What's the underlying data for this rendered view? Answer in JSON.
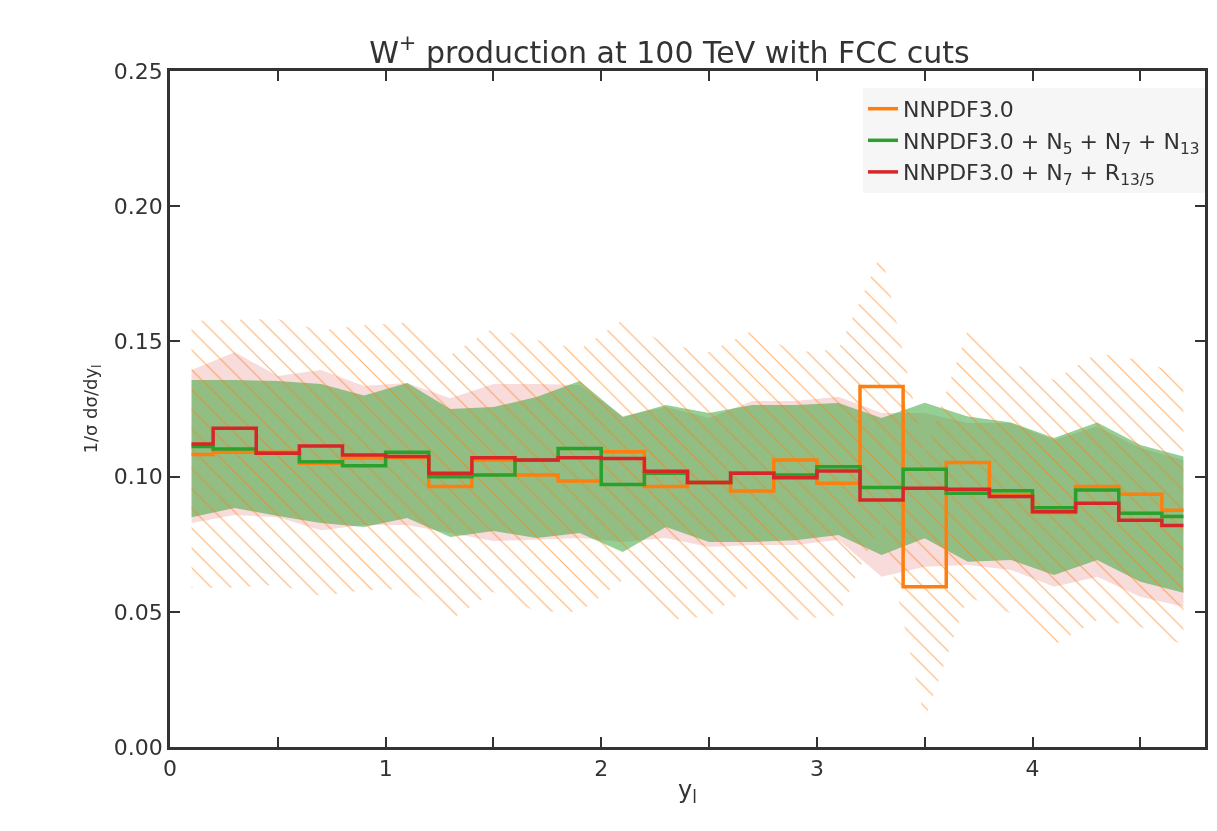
{
  "chart_data": {
    "type": "step",
    "title": "W$^{+}$ production at 100 TeV with FCC cuts",
    "xlabel": "y$_{l}$",
    "ylabel": "1/σ dσ/dy$_{l}$",
    "x": [
      0.1,
      0.3,
      0.5,
      0.7,
      0.9,
      1.1,
      1.3,
      1.5,
      1.7,
      1.9,
      2.1,
      2.3,
      2.5,
      2.7,
      2.9,
      3.1,
      3.3,
      3.5,
      3.7,
      3.9,
      4.1,
      4.3,
      4.5,
      4.7
    ],
    "series": [
      {
        "name": "NNPDF3.0",
        "color": "#ff7f0e",
        "values": [
          0.1082,
          0.109,
          0.109,
          0.1049,
          0.1069,
          0.107,
          0.0963,
          0.1061,
          0.1006,
          0.0984,
          0.1092,
          0.0963,
          0.0978,
          0.0947,
          0.1061,
          0.0975,
          0.1333,
          0.0593,
          0.1052,
          0.0932,
          0.0867,
          0.0963,
          0.0935,
          0.0876
        ],
        "lower": [
          0.0588,
          0.059,
          0.06,
          0.0558,
          0.058,
          0.0584,
          0.047,
          0.0573,
          0.05,
          0.05,
          0.0618,
          0.047,
          0.0484,
          0.06,
          0.047,
          0.0488,
          0.084,
          0.01,
          0.0556,
          0.0495,
          0.0377,
          0.047,
          0.0445,
          0.0377
        ],
        "upper": [
          0.1575,
          0.158,
          0.1583,
          0.154,
          0.156,
          0.157,
          0.145,
          0.155,
          0.1505,
          0.147,
          0.158,
          0.149,
          0.146,
          0.154,
          0.146,
          0.147,
          0.1827,
          0.1085,
          0.154,
          0.142,
          0.1357,
          0.1456,
          0.1431,
          0.137
        ]
      },
      {
        "name": "NNPDF3.0 + N$_{5}$ + N$_{7}$ + N$_{13}$",
        "color": "#2ca02c",
        "values": [
          0.1111,
          0.1102,
          0.1086,
          0.1055,
          0.104,
          0.109,
          0.0999,
          0.1006,
          0.1061,
          0.1104,
          0.0971,
          0.1012,
          0.0978,
          0.1012,
          0.1006,
          0.1036,
          0.096,
          0.1027,
          0.0938,
          0.0948,
          0.0885,
          0.095,
          0.0864,
          0.0852
        ],
        "lower": [
          0.085,
          0.0884,
          0.0854,
          0.0828,
          0.0814,
          0.0847,
          0.0777,
          0.0799,
          0.0773,
          0.0791,
          0.0721,
          0.0814,
          0.0758,
          0.0758,
          0.0765,
          0.0784,
          0.071,
          0.0772,
          0.0685,
          0.0692,
          0.0636,
          0.0692,
          0.0611,
          0.057
        ],
        "upper": [
          0.1357,
          0.1357,
          0.1354,
          0.1342,
          0.13,
          0.1346,
          0.125,
          0.1257,
          0.1294,
          0.1354,
          0.122,
          0.1265,
          0.1235,
          0.1265,
          0.1265,
          0.1272,
          0.1217,
          0.1273,
          0.1222,
          0.12,
          0.1143,
          0.12,
          0.1117,
          0.1074
        ]
      },
      {
        "name": "NNPDF3.0 + N$_{7}$ + R$_{13/5}$",
        "color": "#d62728",
        "values": [
          0.1121,
          0.1179,
          0.1086,
          0.1113,
          0.108,
          0.1074,
          0.1012,
          0.107,
          0.1061,
          0.107,
          0.1067,
          0.102,
          0.0978,
          0.1012,
          0.0996,
          0.1021,
          0.0913,
          0.0957,
          0.0953,
          0.0926,
          0.087,
          0.0901,
          0.0839,
          0.0819
        ],
        "lower": [
          0.0828,
          0.0858,
          0.085,
          0.0802,
          0.0821,
          0.0821,
          0.0791,
          0.0762,
          0.0766,
          0.0773,
          0.0758,
          0.0773,
          0.074,
          0.0747,
          0.0747,
          0.0766,
          0.063,
          0.0667,
          0.0673,
          0.0655,
          0.0593,
          0.063,
          0.0556,
          0.0519
        ],
        "upper": [
          0.1394,
          0.146,
          0.1372,
          0.1394,
          0.1335,
          0.1346,
          0.129,
          0.1342,
          0.1342,
          0.1339,
          0.1224,
          0.1257,
          0.1217,
          0.128,
          0.128,
          0.1295,
          0.1235,
          0.1235,
          0.1198,
          0.1198,
          0.1135,
          0.1185,
          0.1106,
          0.1061
        ]
      }
    ],
    "xlim": [
      0,
      4.8
    ],
    "xticks": [
      0,
      {
        "value": 0.5,
        "label": null
      },
      1,
      {
        "value": 1.5,
        "label": null
      },
      2,
      {
        "value": 2.5,
        "label": null
      },
      3,
      {
        "value": 3.5,
        "label": null
      },
      4,
      {
        "value": 4.5,
        "label": null
      }
    ],
    "ylim": [
      0,
      0.25
    ],
    "yticks": [
      {
        "value": 0,
        "label": "0.00"
      },
      0.05,
      {
        "value": 0.1,
        "label": "0.10"
      },
      0.15,
      {
        "value": 0.2,
        "label": "0.20"
      },
      0.25
    ],
    "grid": false,
    "legend": "top right"
  }
}
